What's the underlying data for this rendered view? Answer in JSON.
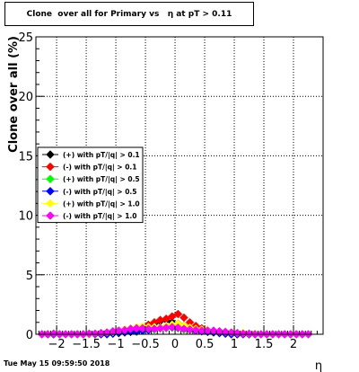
{
  "title": "Clone  over all for Primary vs   η at pT > 0.11",
  "footer": "Tue May 15 09:59:50 2018",
  "chart_data": {
    "type": "scatter",
    "xlabel": "η",
    "ylabel": "Clone  over all (%)",
    "xlim": [
      -2.35,
      2.5
    ],
    "ylim": [
      0,
      25
    ],
    "x_ticks": [
      -2,
      -1.5,
      -1,
      -0.5,
      0,
      0.5,
      1,
      1.5,
      2
    ],
    "x_tick_labels": [
      "−2",
      "−1.5",
      "−1",
      "−0.5",
      "0",
      "0.5",
      "1",
      "1.5",
      "2"
    ],
    "y_ticks": [
      0,
      5,
      10,
      15,
      20,
      25
    ],
    "y_tick_labels": [
      "0",
      "5",
      "10",
      "15",
      "20",
      "25"
    ],
    "grid": true,
    "legend_position": "left",
    "x": [
      -2.25,
      -2.15,
      -2.05,
      -1.95,
      -1.85,
      -1.75,
      -1.65,
      -1.55,
      -1.45,
      -1.35,
      -1.25,
      -1.15,
      -1.05,
      -0.95,
      -0.85,
      -0.75,
      -0.65,
      -0.55,
      -0.45,
      -0.35,
      -0.25,
      -0.15,
      -0.05,
      0.05,
      0.15,
      0.25,
      0.35,
      0.45,
      0.55,
      0.65,
      0.75,
      0.85,
      0.95,
      1.05,
      1.15,
      1.25,
      1.35,
      1.45,
      1.55,
      1.65,
      1.75,
      1.85,
      1.95,
      2.05,
      2.15,
      2.25
    ],
    "series": [
      {
        "name": "(+) with pT/|q| > 0.1",
        "color": "#000000",
        "values": [
          0,
          0,
          0,
          0,
          0,
          0,
          0,
          0,
          0,
          0,
          0,
          0.05,
          0.1,
          0.2,
          0.25,
          0.3,
          0.4,
          0.5,
          0.7,
          0.9,
          1.1,
          1.2,
          1.0,
          0.9,
          0.7,
          0.55,
          0.4,
          0.3,
          0.25,
          0.2,
          0.15,
          0.1,
          0.05,
          0,
          0,
          0,
          0,
          0,
          0,
          0,
          0,
          0,
          0,
          0,
          0,
          0
        ]
      },
      {
        "name": "(-) with pT/|q| > 0.1",
        "color": "#ff0000",
        "values": [
          0,
          0,
          0,
          0,
          0,
          0,
          0,
          0,
          0,
          0,
          0,
          0.05,
          0.1,
          0.2,
          0.3,
          0.4,
          0.5,
          0.6,
          0.8,
          1.0,
          1.2,
          1.3,
          1.5,
          1.7,
          1.4,
          1.0,
          0.7,
          0.5,
          0.35,
          0.25,
          0.2,
          0.15,
          0.1,
          0.05,
          0,
          0,
          0,
          0,
          0,
          0,
          0,
          0,
          0,
          0,
          0,
          0
        ]
      },
      {
        "name": "(+) with pT/|q| > 0.5",
        "color": "#00ff00",
        "values": [
          0,
          0,
          0,
          0,
          0,
          0,
          0,
          0,
          0,
          0,
          0,
          0,
          0.05,
          0.1,
          0.15,
          0.2,
          0.2,
          0.3,
          0.35,
          0.4,
          0.5,
          0.5,
          0.55,
          0.5,
          0.4,
          0.35,
          0.3,
          0.25,
          0.2,
          0.15,
          0.1,
          0.1,
          0.05,
          0,
          0,
          0,
          0,
          0,
          0,
          0,
          0,
          0,
          0,
          0,
          0,
          0
        ]
      },
      {
        "name": "(-) with pT/|q| > 0.5",
        "color": "#0000ff",
        "values": [
          0,
          0,
          0,
          0,
          0,
          0,
          0,
          0,
          0,
          0,
          0,
          0,
          0.05,
          0.1,
          0.15,
          0.2,
          0.25,
          0.3,
          0.35,
          0.45,
          0.55,
          0.6,
          0.6,
          0.55,
          0.45,
          0.4,
          0.3,
          0.25,
          0.2,
          0.15,
          0.1,
          0.05,
          0,
          0,
          0,
          0,
          0,
          0,
          0,
          0,
          0,
          0,
          0,
          0,
          0,
          0
        ]
      },
      {
        "name": "(+) with pT/|q| > 1.0",
        "color": "#ffff00",
        "values": [
          0,
          0.05,
          0.05,
          0,
          0,
          0,
          0,
          0,
          0,
          0.05,
          0.1,
          0.15,
          0.2,
          0.3,
          0.4,
          0.5,
          0.6,
          0.65,
          0.6,
          0.6,
          0.55,
          0.7,
          0.8,
          0.9,
          0.7,
          0.55,
          0.45,
          0.4,
          0.35,
          0.3,
          0.25,
          0.2,
          0.15,
          0.1,
          0.1,
          0.05,
          0.05,
          0,
          0,
          0,
          0,
          0,
          0,
          0,
          0,
          0
        ]
      },
      {
        "name": "(-) with pT/|q| > 1.0",
        "color": "#ff00ff",
        "values": [
          0,
          0,
          0.05,
          0,
          0,
          0,
          0,
          0,
          0.05,
          0.05,
          0.1,
          0.15,
          0.25,
          0.3,
          0.35,
          0.45,
          0.5,
          0.5,
          0.45,
          0.45,
          0.5,
          0.55,
          0.6,
          0.55,
          0.45,
          0.4,
          0.35,
          0.3,
          0.3,
          0.3,
          0.25,
          0.2,
          0.15,
          0.1,
          0.05,
          0.05,
          0,
          0,
          0,
          0,
          0,
          0,
          0,
          0,
          0,
          0
        ]
      }
    ]
  }
}
